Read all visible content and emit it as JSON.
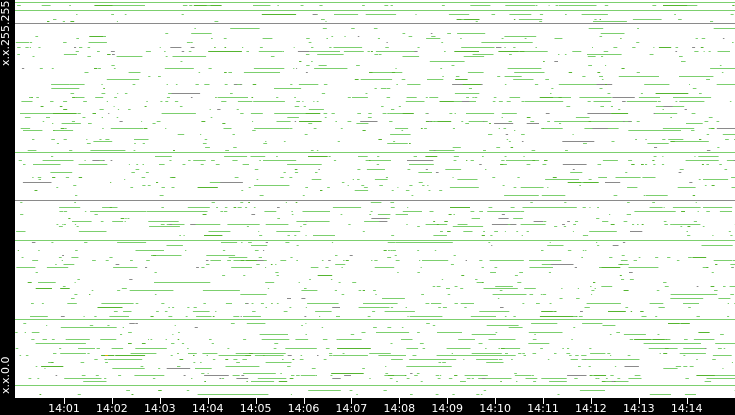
{
  "chart_data": {
    "type": "scatter",
    "y_axis": {
      "top_label": "x.x.255.255",
      "bottom_label": "x.x.0.0"
    },
    "x_axis": {
      "tick_labels": [
        "14:01",
        "14:02",
        "14:03",
        "14:04",
        "14:05",
        "14:06",
        "14:07",
        "14:08",
        "14:09",
        "14:10",
        "14:11",
        "14:12",
        "14:13",
        "14:14"
      ]
    },
    "grid": false,
    "colors": {
      "mark": "#7ccf6e",
      "mark_dark": "#55b52f",
      "mark_gray": "#8a8a8a",
      "highlight": "#e0b000",
      "axis_bg": "#000000",
      "axis_text": "#ffffff"
    }
  }
}
